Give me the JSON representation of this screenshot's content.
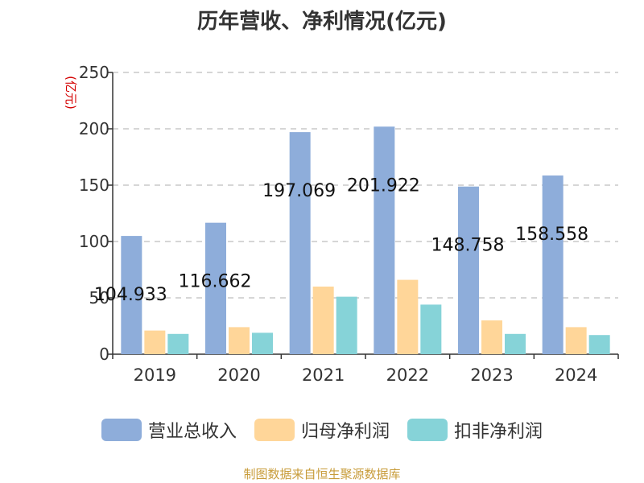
{
  "chart_data": {
    "type": "bar",
    "title": "历年营收、净利情况(亿元)",
    "ylabel": "(亿元)",
    "xlabel": "",
    "ylim": [
      0,
      250
    ],
    "yticks": [
      0,
      50,
      100,
      150,
      200,
      250
    ],
    "grid": true,
    "legend_position": "bottom",
    "categories": [
      "2019",
      "2020",
      "2021",
      "2022",
      "2023",
      "2024"
    ],
    "series": [
      {
        "name": "营业总收入",
        "color": "#8eadda",
        "values": [
          104.933,
          116.662,
          197.069,
          201.922,
          148.758,
          158.558
        ],
        "show_labels": true
      },
      {
        "name": "归母净利润",
        "color": "#ffd699",
        "values": [
          21,
          24,
          60,
          66,
          30,
          24
        ],
        "show_labels": false
      },
      {
        "name": "扣非净利润",
        "color": "#86d3d8",
        "values": [
          18,
          19,
          51,
          44,
          18,
          17
        ],
        "show_labels": false
      }
    ],
    "data_labels": [
      "104.933",
      "116.662",
      "197.069",
      "201.922",
      "148.758",
      "158.558"
    ]
  },
  "footer": {
    "source": "制图数据来自恒生聚源数据库"
  }
}
